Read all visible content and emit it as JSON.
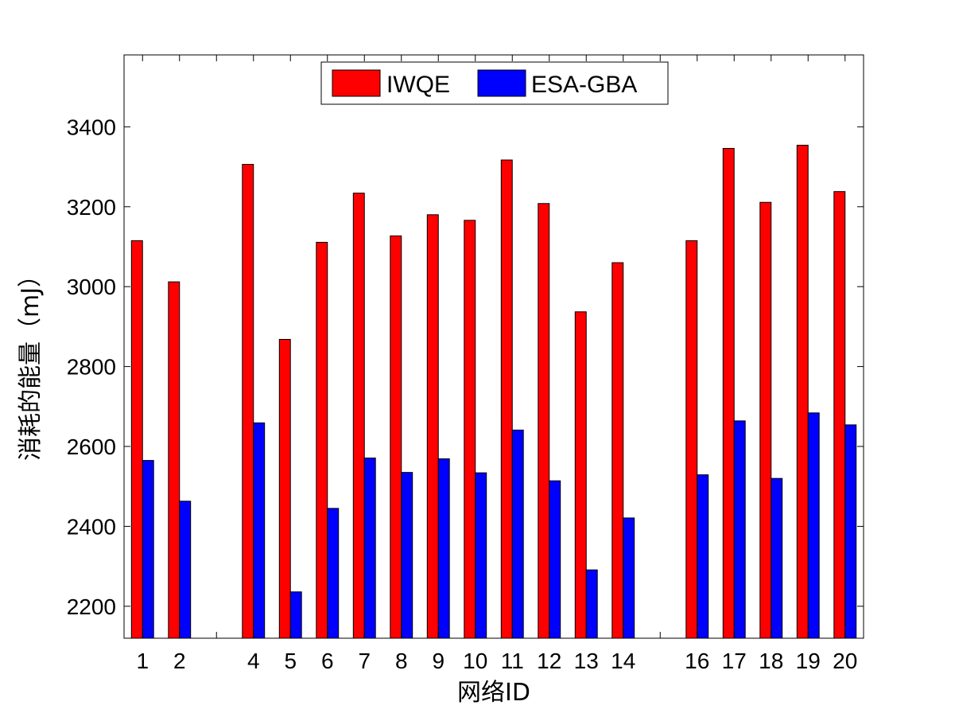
{
  "chart_data": {
    "type": "bar",
    "title": "",
    "xlabel": "网络ID",
    "ylabel": "消耗的能量（mJ）",
    "ylim": [
      2120,
      3580
    ],
    "yticks": [
      2200,
      2400,
      2600,
      2800,
      3000,
      3200,
      3400
    ],
    "categories": [
      "1",
      "2",
      "4",
      "5",
      "6",
      "7",
      "8",
      "9",
      "10",
      "11",
      "12",
      "13",
      "14",
      "16",
      "17",
      "18",
      "19",
      "20"
    ],
    "category_positions": [
      1,
      2,
      4,
      5,
      6,
      7,
      8,
      9,
      10,
      11,
      12,
      13,
      14,
      16,
      17,
      18,
      19,
      20
    ],
    "xlim": [
      0.5,
      20.5
    ],
    "grid": false,
    "legend_placement": "top-center",
    "legend_orientation": "horizontal",
    "series": [
      {
        "name": "IWQE",
        "color": "#ff0000",
        "values": [
          3115,
          3012,
          3306,
          2868,
          3111,
          3234,
          3127,
          3180,
          3166,
          3317,
          3208,
          2937,
          3060,
          3115,
          3346,
          3211,
          3354,
          3238
        ]
      },
      {
        "name": "ESA-GBA",
        "color": "#0000ff",
        "values": [
          2565,
          2463,
          2659,
          2236,
          2445,
          2571,
          2535,
          2569,
          2534,
          2641,
          2514,
          2291,
          2421,
          2529,
          2664,
          2520,
          2684,
          2654
        ]
      }
    ]
  }
}
